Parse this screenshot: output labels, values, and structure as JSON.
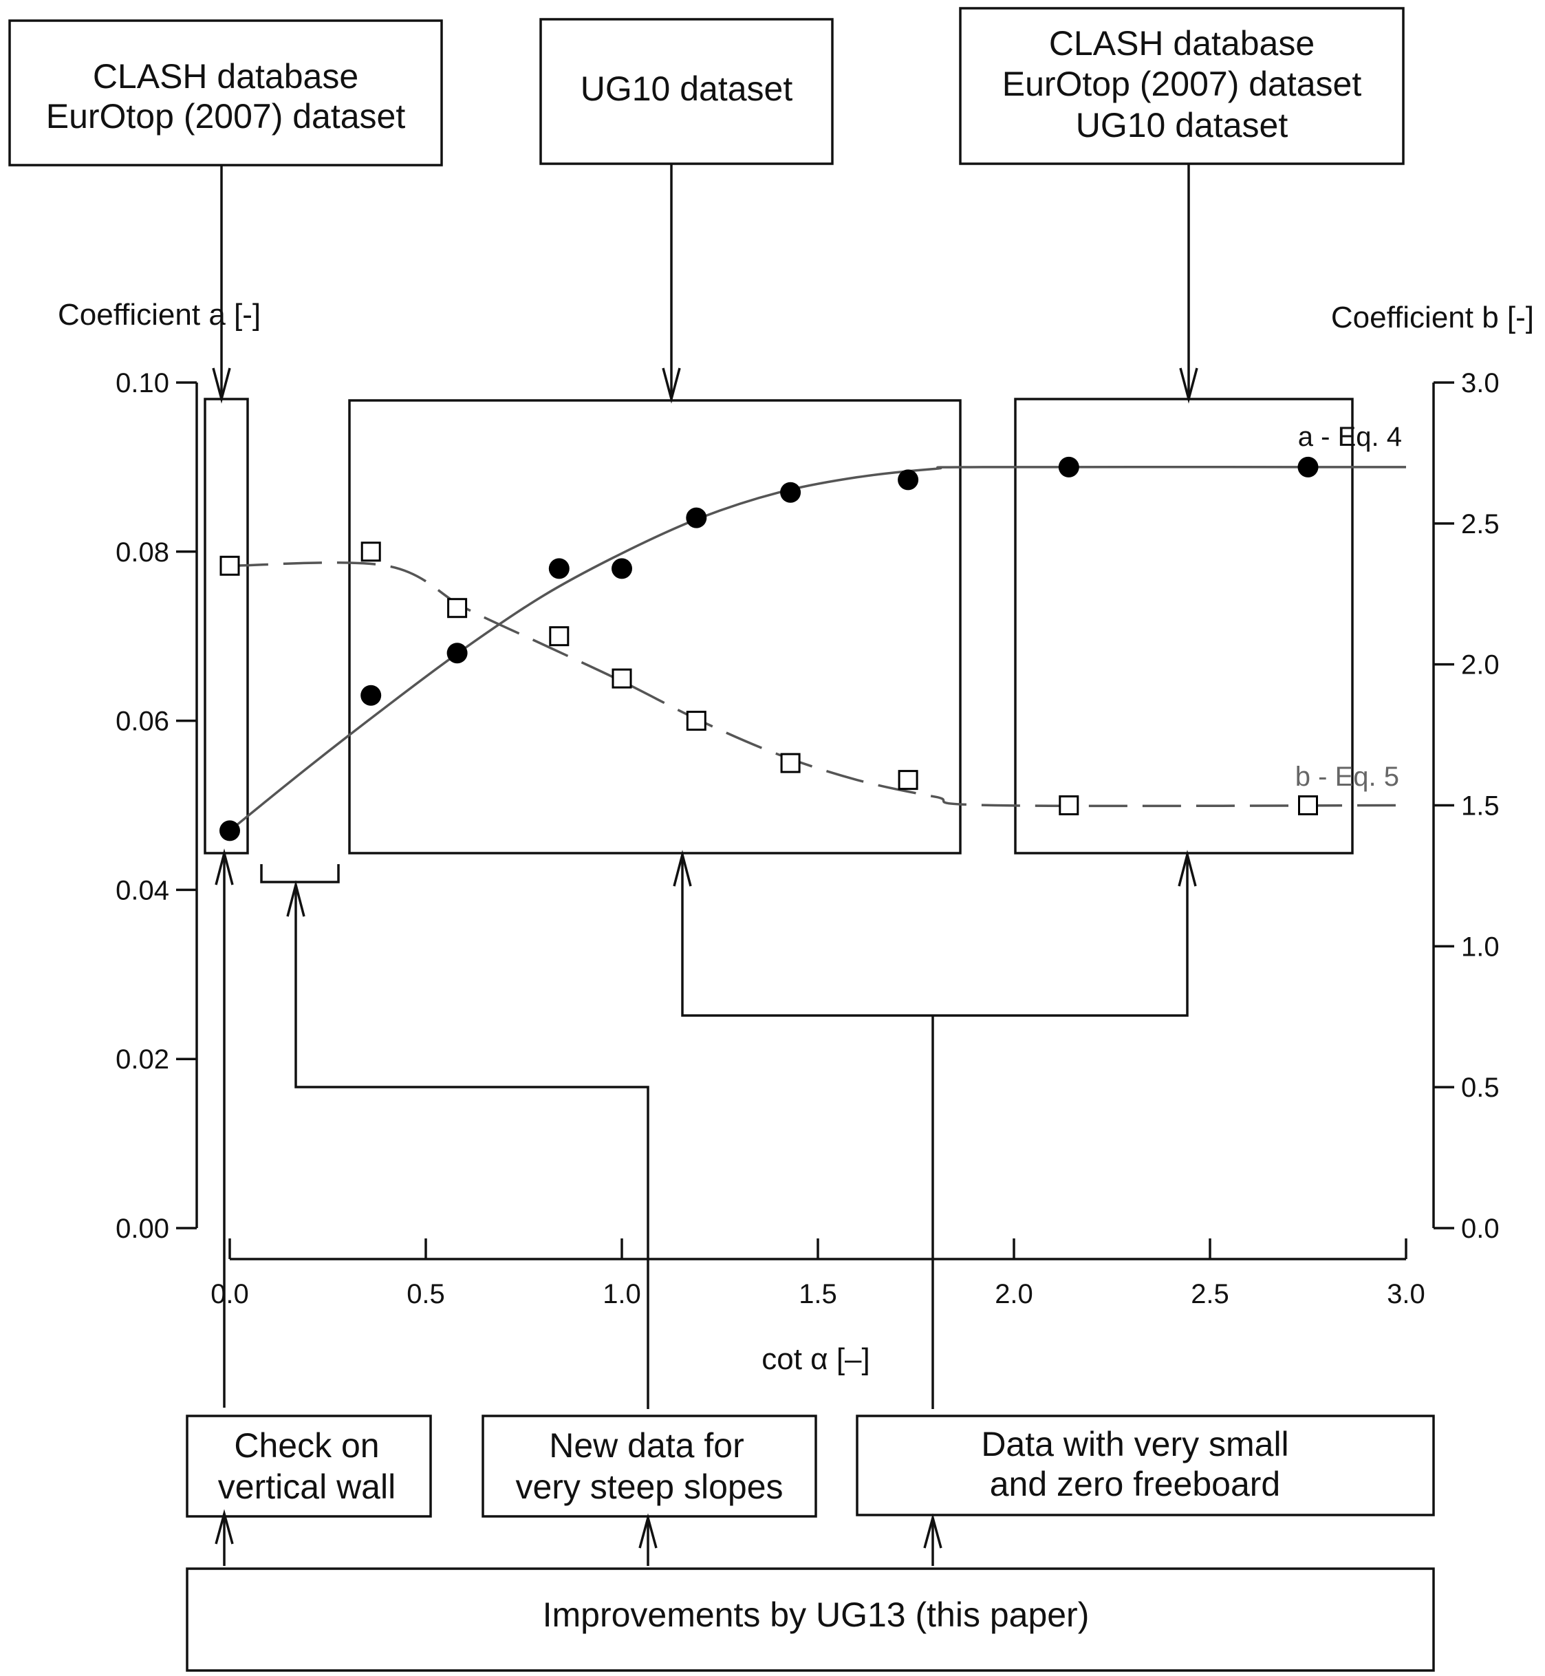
{
  "top_boxes": [
    {
      "lines": [
        "CLASH database",
        "EurOtop (2007) dataset"
      ]
    },
    {
      "lines": [
        "UG10 dataset"
      ]
    },
    {
      "lines": [
        "CLASH database",
        "EurOtop (2007) dataset",
        "UG10 dataset"
      ]
    }
  ],
  "bottom_boxes": [
    {
      "lines": [
        "Check on",
        "vertical wall"
      ]
    },
    {
      "lines": [
        "New data for",
        "very steep slopes"
      ]
    },
    {
      "lines": [
        "Data with very small",
        "and zero freeboard"
      ]
    }
  ],
  "footer": {
    "label": "Improvements by UG13 (this paper)"
  },
  "chart_data": {
    "type": "scatter",
    "xlabel": "cot α [–]",
    "ylabel_left": "Coefficient a [-]",
    "ylabel_right": "Coefficient b [-]",
    "xlim": [
      0.0,
      3.0
    ],
    "ylim_left": [
      0.0,
      0.1
    ],
    "ylim_right": [
      0.0,
      3.0
    ],
    "x_ticks": [
      "0.0",
      "0.5",
      "1.0",
      "1.5",
      "2.0",
      "2.5",
      "3.0"
    ],
    "y_left_ticks": [
      "0.00",
      "0.02",
      "0.04",
      "0.06",
      "0.08",
      "0.10"
    ],
    "y_right_ticks": [
      "0.0",
      "0.5",
      "1.0",
      "1.5",
      "2.0",
      "2.5",
      "3.0"
    ],
    "series": [
      {
        "name": "a - Eq. 4",
        "axis": "left",
        "marker": "filled-circle",
        "color": "#000000",
        "x": [
          0.0,
          0.36,
          0.58,
          0.84,
          1.0,
          1.19,
          1.43,
          1.73,
          2.14,
          2.75
        ],
        "y": [
          0.047,
          0.063,
          0.068,
          0.078,
          0.078,
          0.084,
          0.087,
          0.0885,
          0.09,
          0.09
        ]
      },
      {
        "name": "b - Eq. 5",
        "axis": "right",
        "marker": "open-square",
        "color": "#000000",
        "x": [
          0.0,
          0.36,
          0.58,
          0.84,
          1.0,
          1.19,
          1.43,
          1.73,
          2.14,
          2.75
        ],
        "y": [
          2.35,
          2.4,
          2.2,
          2.1,
          1.95,
          1.8,
          1.65,
          1.59,
          1.5,
          1.5
        ]
      }
    ],
    "fit_lines": [
      {
        "label": "a - Eq. 4",
        "style": "solid",
        "color": "#555555",
        "axis": "left",
        "x": [
          0.0,
          0.2,
          0.4,
          0.6,
          0.8,
          1.0,
          1.2,
          1.4,
          1.6,
          1.8,
          1.92,
          3.0
        ],
        "y": [
          0.047,
          0.0545,
          0.0617,
          0.0686,
          0.0748,
          0.0798,
          0.084,
          0.087,
          0.0888,
          0.0898,
          0.09,
          0.09
        ]
      },
      {
        "label": "b - Eq. 5",
        "style": "dashed",
        "color": "#555555",
        "axis": "right",
        "x": [
          0.0,
          0.4,
          0.6,
          0.8,
          1.0,
          1.2,
          1.4,
          1.6,
          1.8,
          1.95,
          3.0
        ],
        "y": [
          2.35,
          2.35,
          2.2,
          2.07,
          1.94,
          1.8,
          1.68,
          1.59,
          1.53,
          1.5,
          1.5
        ]
      }
    ],
    "grid": false
  }
}
